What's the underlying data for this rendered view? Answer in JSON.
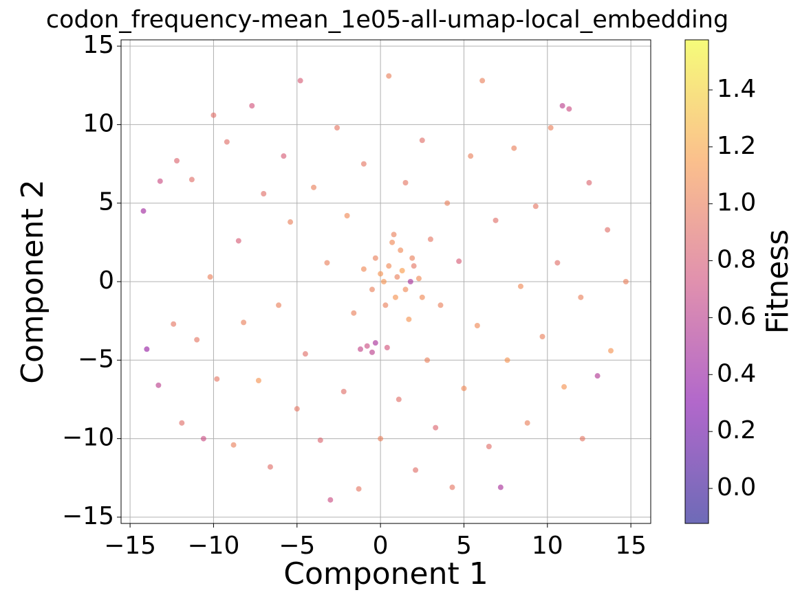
{
  "chart_data": {
    "type": "scatter",
    "title": "codon_frequency-mean_1e05-all-umap-local_embedding",
    "x_label": "Component 1",
    "y_label": "Component 2",
    "colorbar_label": "Fitness",
    "cmap": "plasma",
    "alpha": 0.6,
    "grid": true,
    "xlim": [
      -15.54,
      16.19
    ],
    "ylim": [
      -15.4,
      15.4
    ],
    "xticks": [
      {
        "value": -15,
        "label": "−15"
      },
      {
        "value": -10,
        "label": "−10"
      },
      {
        "value": -5,
        "label": "−5"
      },
      0,
      5,
      10,
      15
    ],
    "yticks": [
      {
        "value": -15,
        "label": "−15"
      },
      {
        "value": -10,
        "label": "−10"
      },
      {
        "value": -5,
        "label": "−5"
      },
      0,
      5,
      10,
      15
    ],
    "clim": [
      -0.123,
      1.576
    ],
    "cticks": [
      {
        "value": 0,
        "label": "0.0"
      },
      0.2,
      0.4,
      0.6,
      0.8,
      {
        "value": 1,
        "label": "1.0"
      },
      1.2,
      1.4
    ],
    "x": [
      -14.2,
      -14.0,
      -13.3,
      -13.2,
      -12.4,
      -12.2,
      -11.9,
      -11.3,
      -11.0,
      -10.6,
      -10.2,
      -10.0,
      -9.8,
      -9.2,
      -8.8,
      -8.5,
      -8.2,
      -7.7,
      -7.3,
      -7.0,
      -6.6,
      -6.1,
      -5.8,
      -5.4,
      -5.0,
      -4.8,
      -4.5,
      -4.0,
      -3.6,
      -3.2,
      -3.0,
      -2.6,
      -2.2,
      -2.0,
      -1.6,
      -1.3,
      -1.0,
      -0.8,
      -0.5,
      -0.3,
      0.0,
      0.2,
      0.4,
      0.5,
      0.7,
      0.9,
      1.1,
      1.3,
      1.5,
      1.7,
      1.9,
      2.1,
      2.3,
      2.5,
      2.8,
      3.0,
      3.3,
      3.6,
      4.0,
      4.3,
      4.7,
      5.0,
      5.4,
      5.8,
      6.1,
      6.5,
      6.9,
      7.2,
      7.6,
      8.0,
      8.4,
      8.8,
      9.3,
      9.7,
      10.2,
      10.6,
      11.0,
      11.3,
      12.0,
      12.5,
      13.0,
      13.6,
      14.7,
      13.8,
      12.1,
      10.9,
      0.5,
      1.0,
      1.5,
      0.0,
      -0.5,
      2.0,
      1.2,
      0.3,
      2.5,
      -1.0,
      0.8,
      1.8,
      -0.3,
      -1.2
    ],
    "values": [
      4.5,
      -4.3,
      -6.6,
      6.4,
      -2.7,
      7.7,
      -9.0,
      6.5,
      -3.7,
      -10.0,
      0.3,
      10.6,
      -6.2,
      8.9,
      -10.4,
      2.6,
      -2.6,
      11.2,
      -6.3,
      5.6,
      -11.8,
      -1.5,
      8.0,
      3.8,
      -8.1,
      12.8,
      -4.6,
      6.0,
      -10.1,
      1.2,
      -13.9,
      9.8,
      -7.0,
      4.2,
      -2.0,
      -13.2,
      7.5,
      -4.1,
      -4.5,
      1.5,
      -10.0,
      0.0,
      -4.2,
      13.1,
      2.5,
      -1.0,
      -7.5,
      0.7,
      6.3,
      -2.4,
      1.5,
      -12.0,
      0.2,
      9.0,
      -5.0,
      2.7,
      -9.3,
      -1.5,
      5.0,
      -13.1,
      1.3,
      -6.8,
      8.0,
      -2.8,
      12.8,
      -10.5,
      3.9,
      -13.1,
      -5.0,
      8.5,
      -0.3,
      -9.0,
      4.8,
      -3.5,
      9.8,
      1.2,
      -6.7,
      11.0,
      -1.0,
      6.3,
      -6.0,
      3.3,
      0.0,
      -4.4,
      -10.0,
      11.2,
      1.0,
      0.3,
      -0.5,
      0.5,
      -0.5,
      1.0,
      2.0,
      -1.5,
      -1.0,
      0.8,
      3.0,
      0.0,
      -3.9,
      -4.3
    ],
    "color_values": [
      0.45,
      0.4,
      0.6,
      0.7,
      0.95,
      0.85,
      0.9,
      0.9,
      0.95,
      0.7,
      1.0,
      0.9,
      0.95,
      0.9,
      1.0,
      0.8,
      1.0,
      0.75,
      1.1,
      0.9,
      0.9,
      1.0,
      0.8,
      1.0,
      0.95,
      0.8,
      0.9,
      1.0,
      0.85,
      1.0,
      0.7,
      0.95,
      0.9,
      1.05,
      1.0,
      0.95,
      0.95,
      0.7,
      0.6,
      1.0,
      1.0,
      1.1,
      0.75,
      1.0,
      1.05,
      1.1,
      0.9,
      1.15,
      0.95,
      1.1,
      1.0,
      0.9,
      1.05,
      0.9,
      1.0,
      0.95,
      0.85,
      1.0,
      1.0,
      0.95,
      0.8,
      1.05,
      1.0,
      1.05,
      1.0,
      0.9,
      0.9,
      0.5,
      1.1,
      1.0,
      1.05,
      1.0,
      0.95,
      1.0,
      1.0,
      0.9,
      1.1,
      0.7,
      1.0,
      0.85,
      0.55,
      0.9,
      1.0,
      1.1,
      0.95,
      0.6,
      1.05,
      1.0,
      1.05,
      1.1,
      1.0,
      0.95,
      1.05,
      1.0,
      1.05,
      1.05,
      1.0,
      0.5,
      0.5,
      0.65
    ]
  }
}
